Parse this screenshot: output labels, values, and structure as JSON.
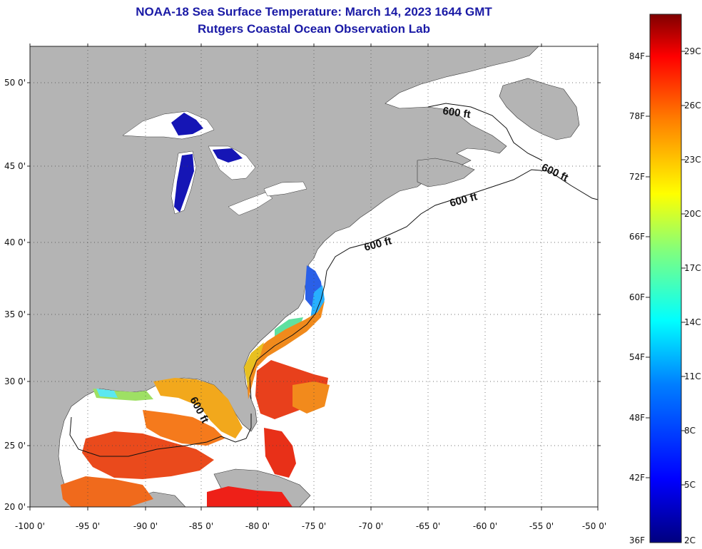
{
  "title": {
    "line1": "NOAA-18 Sea Surface Temperature:  March 14, 2023 1644 GMT",
    "line2": "Rutgers Coastal Ocean Observation Lab"
  },
  "map": {
    "lat_labels": [
      "50 0'",
      "45 0'",
      "40 0'",
      "35 0'",
      "30 0'",
      "25 0'",
      "20 0'"
    ],
    "lon_labels": [
      "-100 0'",
      "-95 0'",
      "-90 0'",
      "-85 0'",
      "-80 0'",
      "-75 0'",
      "-70 0'",
      "-65 0'",
      "-60 0'",
      "-55 0'",
      "-50 0'"
    ],
    "contour_labels": [
      "600 ft",
      "600 ft",
      "600 ft",
      "600 ft",
      "600 ft"
    ],
    "land_color": "#b4b4b4",
    "grid": "dotted"
  },
  "colorbar": {
    "fahrenheit_labels": [
      "84F",
      "78F",
      "72F",
      "66F",
      "60F",
      "54F",
      "48F",
      "42F",
      "36F"
    ],
    "celsius_labels": [
      "29C",
      "26C",
      "23C",
      "20C",
      "17C",
      "14C",
      "11C",
      "8C",
      "5C",
      "2C"
    ],
    "colors": [
      "#00007f",
      "#0000ff",
      "#007fff",
      "#00ffff",
      "#7fff7f",
      "#ffff00",
      "#ff7f00",
      "#ff0000",
      "#7f0000"
    ]
  }
}
